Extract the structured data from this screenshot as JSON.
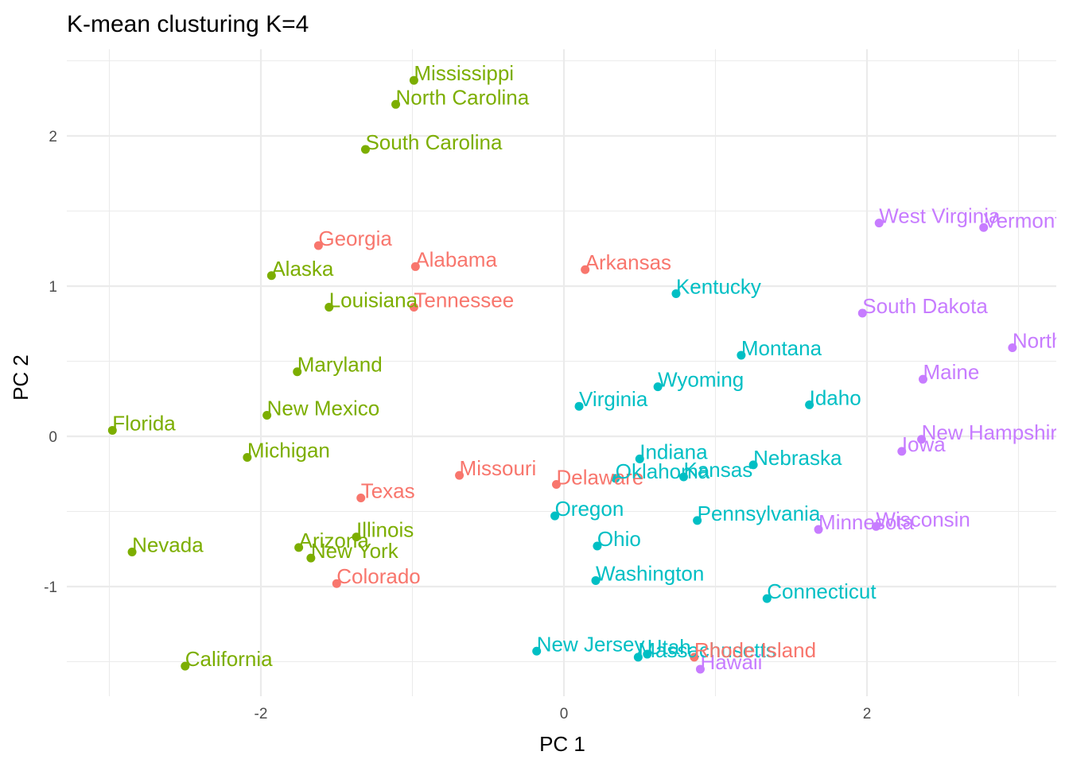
{
  "chart_data": {
    "type": "scatter",
    "title": "K-mean clusturing K=4",
    "xlabel": "PC 1",
    "ylabel": "PC 2",
    "xlim": [
      -3.2,
      3.3
    ],
    "ylim": [
      -1.72,
      2.53
    ],
    "x_ticks": [
      -2,
      0,
      2
    ],
    "y_ticks": [
      -1,
      0,
      1,
      2
    ],
    "grid": true,
    "legend": "none",
    "cluster_colors": {
      "1": "#f8766d",
      "2": "#7cae00",
      "3": "#00bfc4",
      "4": "#c77cff"
    },
    "points": [
      {
        "label": "Alabama",
        "x": -0.98,
        "y": 1.13,
        "cluster": 1
      },
      {
        "label": "Alaska",
        "x": -1.93,
        "y": 1.07,
        "cluster": 2
      },
      {
        "label": "Arizona",
        "x": -1.75,
        "y": -0.74,
        "cluster": 2
      },
      {
        "label": "Arkansas",
        "x": 0.14,
        "y": 1.11,
        "cluster": 1
      },
      {
        "label": "California",
        "x": -2.5,
        "y": -1.53,
        "cluster": 2
      },
      {
        "label": "Colorado",
        "x": -1.5,
        "y": -0.98,
        "cluster": 1
      },
      {
        "label": "Connecticut",
        "x": 1.34,
        "y": -1.08,
        "cluster": 3
      },
      {
        "label": "Delaware",
        "x": -0.05,
        "y": -0.32,
        "cluster": 1
      },
      {
        "label": "Florida",
        "x": -2.98,
        "y": 0.04,
        "cluster": 2
      },
      {
        "label": "Georgia",
        "x": -1.62,
        "y": 1.27,
        "cluster": 1
      },
      {
        "label": "Hawaii",
        "x": 0.9,
        "y": -1.55,
        "cluster": 4
      },
      {
        "label": "Idaho",
        "x": 1.62,
        "y": 0.21,
        "cluster": 3
      },
      {
        "label": "Illinois",
        "x": -1.37,
        "y": -0.67,
        "cluster": 2
      },
      {
        "label": "Indiana",
        "x": 0.5,
        "y": -0.15,
        "cluster": 3
      },
      {
        "label": "Iowa",
        "x": 2.23,
        "y": -0.1,
        "cluster": 4
      },
      {
        "label": "Kansas",
        "x": 0.79,
        "y": -0.27,
        "cluster": 3
      },
      {
        "label": "Kentucky",
        "x": 0.74,
        "y": 0.95,
        "cluster": 3
      },
      {
        "label": "Louisiana",
        "x": -1.55,
        "y": 0.86,
        "cluster": 2
      },
      {
        "label": "Maine",
        "x": 2.37,
        "y": 0.38,
        "cluster": 4
      },
      {
        "label": "Maryland",
        "x": -1.76,
        "y": 0.43,
        "cluster": 2
      },
      {
        "label": "Massachusetts",
        "x": 0.49,
        "y": -1.47,
        "cluster": 3
      },
      {
        "label": "Michigan",
        "x": -2.09,
        "y": -0.14,
        "cluster": 2
      },
      {
        "label": "Minnesota",
        "x": 1.68,
        "y": -0.62,
        "cluster": 4
      },
      {
        "label": "Mississippi",
        "x": -0.99,
        "y": 2.37,
        "cluster": 2
      },
      {
        "label": "Missouri",
        "x": -0.69,
        "y": -0.26,
        "cluster": 1
      },
      {
        "label": "Montana",
        "x": 1.17,
        "y": 0.54,
        "cluster": 3
      },
      {
        "label": "Nebraska",
        "x": 1.25,
        "y": -0.19,
        "cluster": 3
      },
      {
        "label": "Nevada",
        "x": -2.85,
        "y": -0.77,
        "cluster": 2
      },
      {
        "label": "New Hampshire",
        "x": 2.36,
        "y": -0.02,
        "cluster": 4
      },
      {
        "label": "New Jersey",
        "x": -0.18,
        "y": -1.43,
        "cluster": 3
      },
      {
        "label": "New Mexico",
        "x": -1.96,
        "y": 0.14,
        "cluster": 2
      },
      {
        "label": "New York",
        "x": -1.67,
        "y": -0.81,
        "cluster": 2
      },
      {
        "label": "North Carolina",
        "x": -1.11,
        "y": 2.21,
        "cluster": 2
      },
      {
        "label": "North Dakota",
        "x": 2.96,
        "y": 0.59,
        "cluster": 4
      },
      {
        "label": "Ohio",
        "x": 0.22,
        "y": -0.73,
        "cluster": 3
      },
      {
        "label": "Oklahoma",
        "x": 0.34,
        "y": -0.28,
        "cluster": 3
      },
      {
        "label": "Oregon",
        "x": -0.06,
        "y": -0.53,
        "cluster": 3
      },
      {
        "label": "Pennsylvania",
        "x": 0.88,
        "y": -0.56,
        "cluster": 3
      },
      {
        "label": "Rhode Island",
        "x": 0.86,
        "y": -1.47,
        "cluster": 1
      },
      {
        "label": "South Carolina",
        "x": -1.31,
        "y": 1.91,
        "cluster": 2
      },
      {
        "label": "South Dakota",
        "x": 1.97,
        "y": 0.82,
        "cluster": 4
      },
      {
        "label": "Tennessee",
        "x": -0.99,
        "y": 0.86,
        "cluster": 1
      },
      {
        "label": "Texas",
        "x": -1.34,
        "y": -0.41,
        "cluster": 1
      },
      {
        "label": "Utah",
        "x": 0.55,
        "y": -1.45,
        "cluster": 3
      },
      {
        "label": "Vermont",
        "x": 2.77,
        "y": 1.39,
        "cluster": 4
      },
      {
        "label": "Virginia",
        "x": 0.1,
        "y": 0.2,
        "cluster": 3
      },
      {
        "label": "Washington",
        "x": 0.21,
        "y": -0.96,
        "cluster": 3
      },
      {
        "label": "West Virginia",
        "x": 2.08,
        "y": 1.42,
        "cluster": 4
      },
      {
        "label": "Wisconsin",
        "x": 2.06,
        "y": -0.6,
        "cluster": 4
      },
      {
        "label": "Wyoming",
        "x": 0.62,
        "y": 0.33,
        "cluster": 3
      }
    ]
  }
}
